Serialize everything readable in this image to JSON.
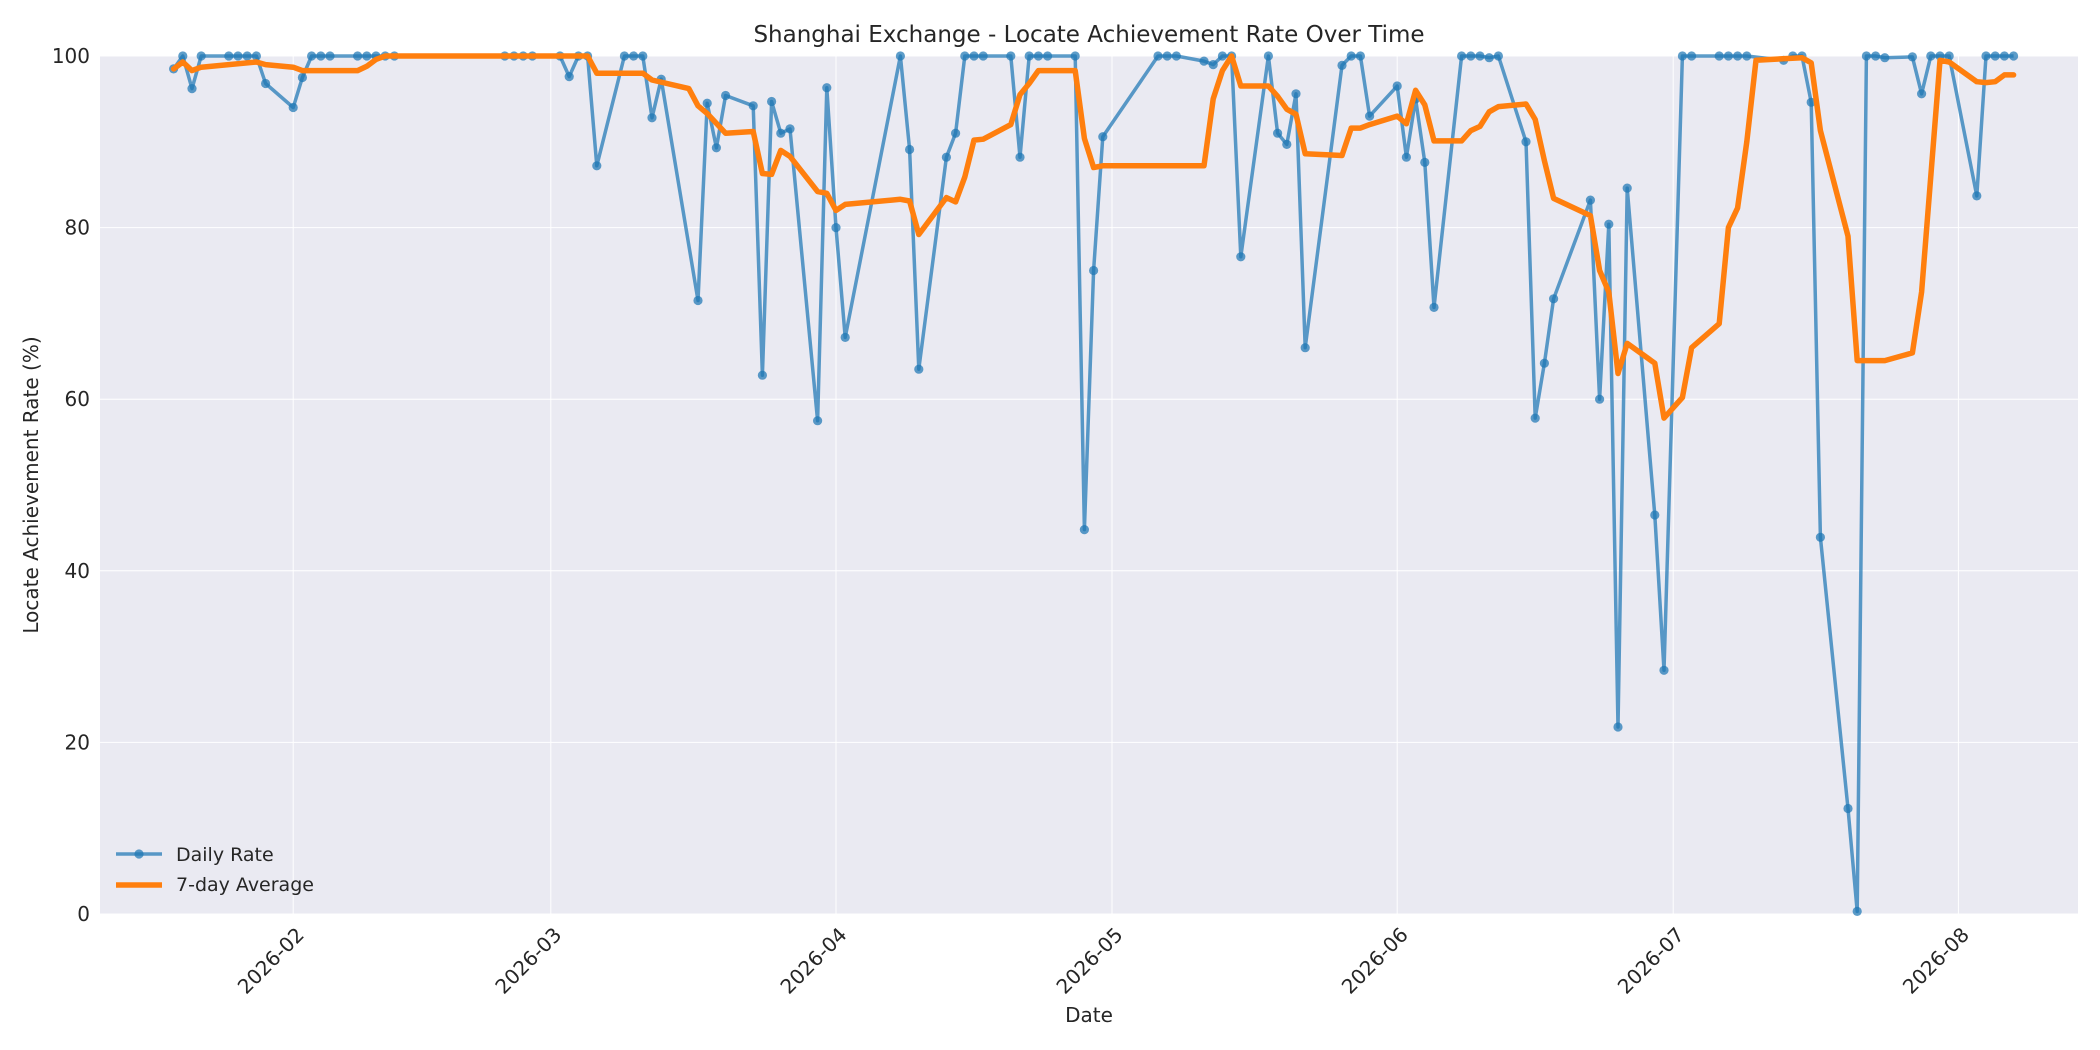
{
  "chart_data": {
    "type": "line",
    "title": "Shanghai Exchange - Locate Achievement Rate Over Time",
    "xlabel": "Date",
    "ylabel": "Locate Achievement Rate (%)",
    "ylim": [
      0,
      100
    ],
    "xlim": [
      "2026-01-11",
      "2026-08-14"
    ],
    "grid": true,
    "legend_position": "lower-left",
    "y_ticks": [
      0,
      20,
      40,
      60,
      80,
      100
    ],
    "x_ticks": [
      "2026-02-01",
      "2026-03-01",
      "2026-04-01",
      "2026-05-01",
      "2026-06-01",
      "2026-07-01",
      "2026-08-01"
    ],
    "x_tick_labels": [
      "2026-02",
      "2026-03",
      "2026-04",
      "2026-05",
      "2026-06",
      "2026-07",
      "2026-08"
    ],
    "colors": {
      "daily": "#1f77b4",
      "avg": "#ff7f0e",
      "plot_bg": "#eaeaf2",
      "grid": "#ffffff"
    },
    "series": [
      {
        "name": "Daily Rate",
        "points": [
          [
            "2026-01-19",
            98.5
          ],
          [
            "2026-01-20",
            100
          ],
          [
            "2026-01-21",
            96.2
          ],
          [
            "2026-01-22",
            100
          ],
          [
            "2026-01-25",
            100
          ],
          [
            "2026-01-26",
            100
          ],
          [
            "2026-01-27",
            100
          ],
          [
            "2026-01-28",
            100
          ],
          [
            "2026-01-29",
            96.8
          ],
          [
            "2026-02-01",
            94
          ],
          [
            "2026-02-02",
            97.5
          ],
          [
            "2026-02-03",
            100
          ],
          [
            "2026-02-04",
            100
          ],
          [
            "2026-02-05",
            100
          ],
          [
            "2026-02-08",
            100
          ],
          [
            "2026-02-09",
            100
          ],
          [
            "2026-02-10",
            100
          ],
          [
            "2026-02-11",
            100
          ],
          [
            "2026-02-12",
            100
          ],
          [
            "2026-02-24",
            100
          ],
          [
            "2026-02-25",
            100
          ],
          [
            "2026-02-26",
            100
          ],
          [
            "2026-02-27",
            100
          ],
          [
            "2026-03-02",
            100
          ],
          [
            "2026-03-03",
            97.6
          ],
          [
            "2026-03-04",
            100
          ],
          [
            "2026-03-05",
            100
          ],
          [
            "2026-03-06",
            87.2
          ],
          [
            "2026-03-09",
            100
          ],
          [
            "2026-03-10",
            100
          ],
          [
            "2026-03-11",
            100
          ],
          [
            "2026-03-12",
            92.8
          ],
          [
            "2026-03-13",
            97.3
          ],
          [
            "2026-03-17",
            71.5
          ],
          [
            "2026-03-18",
            94.5
          ],
          [
            "2026-03-19",
            89.3
          ],
          [
            "2026-03-20",
            95.4
          ],
          [
            "2026-03-23",
            94.2
          ],
          [
            "2026-03-24",
            62.8
          ],
          [
            "2026-03-25",
            94.7
          ],
          [
            "2026-03-26",
            91
          ],
          [
            "2026-03-27",
            91.5
          ],
          [
            "2026-03-30",
            57.5
          ],
          [
            "2026-03-31",
            96.3
          ],
          [
            "2026-04-01",
            80
          ],
          [
            "2026-04-02",
            67.2
          ],
          [
            "2026-04-08",
            100
          ],
          [
            "2026-04-09",
            89.1
          ],
          [
            "2026-04-10",
            63.5
          ],
          [
            "2026-04-13",
            88.2
          ],
          [
            "2026-04-14",
            91
          ],
          [
            "2026-04-15",
            100
          ],
          [
            "2026-04-16",
            100
          ],
          [
            "2026-04-17",
            100
          ],
          [
            "2026-04-20",
            100
          ],
          [
            "2026-04-21",
            88.2
          ],
          [
            "2026-04-22",
            100
          ],
          [
            "2026-04-23",
            100
          ],
          [
            "2026-04-24",
            100
          ],
          [
            "2026-04-27",
            100
          ],
          [
            "2026-04-28",
            44.8
          ],
          [
            "2026-04-29",
            75
          ],
          [
            "2026-04-30",
            90.6
          ],
          [
            "2026-05-06",
            100
          ],
          [
            "2026-05-07",
            100
          ],
          [
            "2026-05-08",
            100
          ],
          [
            "2026-05-11",
            99.4
          ],
          [
            "2026-05-12",
            99
          ],
          [
            "2026-05-13",
            100
          ],
          [
            "2026-05-14",
            100
          ],
          [
            "2026-05-15",
            76.6
          ],
          [
            "2026-05-18",
            100
          ],
          [
            "2026-05-19",
            91
          ],
          [
            "2026-05-20",
            89.7
          ],
          [
            "2026-05-21",
            95.6
          ],
          [
            "2026-05-22",
            66
          ],
          [
            "2026-05-26",
            98.9
          ],
          [
            "2026-05-27",
            100
          ],
          [
            "2026-05-28",
            100
          ],
          [
            "2026-05-29",
            93
          ],
          [
            "2026-06-01",
            96.5
          ],
          [
            "2026-06-02",
            88.2
          ],
          [
            "2026-06-03",
            95
          ],
          [
            "2026-06-04",
            87.6
          ],
          [
            "2026-06-05",
            70.7
          ],
          [
            "2026-06-08",
            100
          ],
          [
            "2026-06-09",
            100
          ],
          [
            "2026-06-10",
            100
          ],
          [
            "2026-06-11",
            99.8
          ],
          [
            "2026-06-12",
            100
          ],
          [
            "2026-06-15",
            90
          ],
          [
            "2026-06-16",
            57.8
          ],
          [
            "2026-06-17",
            64.2
          ],
          [
            "2026-06-18",
            71.7
          ],
          [
            "2026-06-22",
            83.2
          ],
          [
            "2026-06-23",
            60
          ],
          [
            "2026-06-24",
            80.4
          ],
          [
            "2026-06-25",
            21.8
          ],
          [
            "2026-06-26",
            84.6
          ],
          [
            "2026-06-29",
            46.5
          ],
          [
            "2026-06-30",
            28.4
          ],
          [
            "2026-07-02",
            100
          ],
          [
            "2026-07-03",
            100
          ],
          [
            "2026-07-06",
            100
          ],
          [
            "2026-07-07",
            100
          ],
          [
            "2026-07-08",
            100
          ],
          [
            "2026-07-09",
            100
          ],
          [
            "2026-07-13",
            99.5
          ],
          [
            "2026-07-14",
            100
          ],
          [
            "2026-07-15",
            100
          ],
          [
            "2026-07-16",
            94.6
          ],
          [
            "2026-07-17",
            43.9
          ],
          [
            "2026-07-20",
            12.3
          ],
          [
            "2026-07-21",
            0.3
          ],
          [
            "2026-07-22",
            100
          ],
          [
            "2026-07-23",
            100
          ],
          [
            "2026-07-24",
            99.8
          ],
          [
            "2026-07-27",
            99.9
          ],
          [
            "2026-07-28",
            95.6
          ],
          [
            "2026-07-29",
            100
          ],
          [
            "2026-07-30",
            100
          ],
          [
            "2026-07-31",
            100
          ],
          [
            "2026-08-03",
            83.7
          ],
          [
            "2026-08-04",
            100
          ],
          [
            "2026-08-05",
            100
          ],
          [
            "2026-08-06",
            100
          ],
          [
            "2026-08-07",
            100
          ]
        ]
      },
      {
        "name": "7-day Average",
        "points": [
          [
            "2026-01-19",
            98.5
          ],
          [
            "2026-01-20",
            99.3
          ],
          [
            "2026-01-21",
            98.3
          ],
          [
            "2026-01-22",
            98.7
          ],
          [
            "2026-01-28",
            99.3
          ],
          [
            "2026-01-29",
            99
          ],
          [
            "2026-02-01",
            98.7
          ],
          [
            "2026-02-02",
            98.3
          ],
          [
            "2026-02-08",
            98.3
          ],
          [
            "2026-02-09",
            98.8
          ],
          [
            "2026-02-10",
            99.6
          ],
          [
            "2026-02-11",
            100
          ],
          [
            "2026-03-05",
            100
          ],
          [
            "2026-03-06",
            98
          ],
          [
            "2026-03-11",
            98
          ],
          [
            "2026-03-12",
            97.2
          ],
          [
            "2026-03-16",
            96.2
          ],
          [
            "2026-03-17",
            94.2
          ],
          [
            "2026-03-18",
            93.3
          ],
          [
            "2026-03-20",
            91
          ],
          [
            "2026-03-23",
            91.2
          ],
          [
            "2026-03-24",
            86.3
          ],
          [
            "2026-03-25",
            86.2
          ],
          [
            "2026-03-26",
            89
          ],
          [
            "2026-03-27",
            88.3
          ],
          [
            "2026-03-30",
            84.2
          ],
          [
            "2026-03-31",
            84
          ],
          [
            "2026-04-01",
            82
          ],
          [
            "2026-04-02",
            82.7
          ],
          [
            "2026-04-08",
            83.3
          ],
          [
            "2026-04-09",
            83.1
          ],
          [
            "2026-04-10",
            79.2
          ],
          [
            "2026-04-13",
            83.5
          ],
          [
            "2026-04-14",
            83
          ],
          [
            "2026-04-15",
            85.9
          ],
          [
            "2026-04-16",
            90.2
          ],
          [
            "2026-04-17",
            90.3
          ],
          [
            "2026-04-20",
            92
          ],
          [
            "2026-04-21",
            95.5
          ],
          [
            "2026-04-22",
            96.8
          ],
          [
            "2026-04-23",
            98.3
          ],
          [
            "2026-04-27",
            98.3
          ],
          [
            "2026-04-28",
            90.4
          ],
          [
            "2026-04-29",
            87
          ],
          [
            "2026-04-30",
            87.2
          ],
          [
            "2026-05-11",
            87.2
          ],
          [
            "2026-05-12",
            95
          ],
          [
            "2026-05-13",
            98.3
          ],
          [
            "2026-05-14",
            100
          ],
          [
            "2026-05-15",
            96.5
          ],
          [
            "2026-05-18",
            96.5
          ],
          [
            "2026-05-19",
            95.3
          ],
          [
            "2026-05-20",
            93.8
          ],
          [
            "2026-05-21",
            93.2
          ],
          [
            "2026-05-22",
            88.6
          ],
          [
            "2026-05-26",
            88.4
          ],
          [
            "2026-05-27",
            91.6
          ],
          [
            "2026-05-28",
            91.6
          ],
          [
            "2026-05-29",
            92
          ],
          [
            "2026-06-01",
            93
          ],
          [
            "2026-06-02",
            92.1
          ],
          [
            "2026-06-03",
            96
          ],
          [
            "2026-06-04",
            94.3
          ],
          [
            "2026-06-05",
            90.1
          ],
          [
            "2026-06-08",
            90.1
          ],
          [
            "2026-06-09",
            91.3
          ],
          [
            "2026-06-10",
            91.8
          ],
          [
            "2026-06-11",
            93.5
          ],
          [
            "2026-06-12",
            94.1
          ],
          [
            "2026-06-15",
            94.4
          ],
          [
            "2026-06-16",
            92.6
          ],
          [
            "2026-06-17",
            87.8
          ],
          [
            "2026-06-18",
            83.4
          ],
          [
            "2026-06-22",
            81.4
          ],
          [
            "2026-06-23",
            75
          ],
          [
            "2026-06-24",
            72.5
          ],
          [
            "2026-06-25",
            63
          ],
          [
            "2026-06-26",
            66.5
          ],
          [
            "2026-06-29",
            64.2
          ],
          [
            "2026-06-30",
            57.8
          ],
          [
            "2026-07-02",
            60.2
          ],
          [
            "2026-07-03",
            66
          ],
          [
            "2026-07-06",
            68.8
          ],
          [
            "2026-07-07",
            80
          ],
          [
            "2026-07-08",
            82.3
          ],
          [
            "2026-07-09",
            90
          ],
          [
            "2026-07-10",
            99.5
          ],
          [
            "2026-07-15",
            99.8
          ],
          [
            "2026-07-16",
            99.2
          ],
          [
            "2026-07-17",
            91.3
          ],
          [
            "2026-07-20",
            79
          ],
          [
            "2026-07-21",
            64.5
          ],
          [
            "2026-07-24",
            64.5
          ],
          [
            "2026-07-27",
            65.4
          ],
          [
            "2026-07-28",
            72.5
          ],
          [
            "2026-07-30",
            99.5
          ],
          [
            "2026-07-31",
            99.3
          ],
          [
            "2026-08-03",
            97
          ],
          [
            "2026-08-04",
            96.9
          ],
          [
            "2026-08-05",
            97
          ],
          [
            "2026-08-06",
            97.8
          ],
          [
            "2026-08-07",
            97.8
          ]
        ]
      }
    ]
  }
}
